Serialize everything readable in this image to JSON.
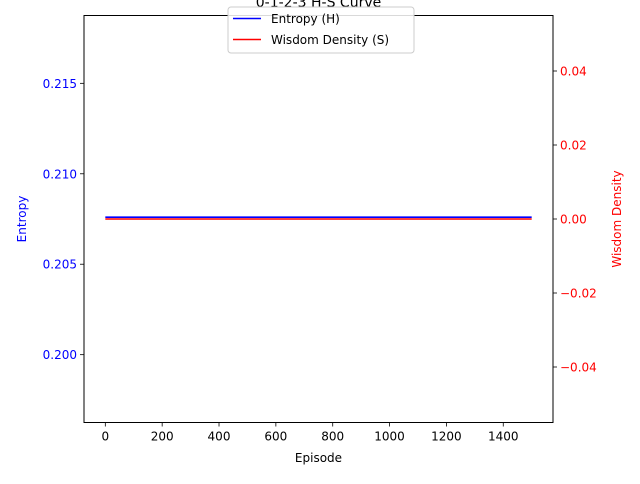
{
  "chart_data": {
    "type": "line",
    "title": "0-1-2-3 H-S Curve",
    "xlabel": "Episode",
    "ylabel_left": "Entropy",
    "ylabel_right": "Wisdom Density",
    "xlim": [
      -75,
      1575
    ],
    "x_ticks": [
      0,
      200,
      400,
      600,
      800,
      1000,
      1200,
      1400
    ],
    "x_tick_labels": [
      "0",
      "200",
      "400",
      "600",
      "800",
      "1000",
      "1200",
      "1400"
    ],
    "ylim_left": [
      0.19625,
      0.21875
    ],
    "y_ticks_left": [
      0.2,
      0.205,
      0.21,
      0.215
    ],
    "y_tick_labels_left": [
      "0.200",
      "0.205",
      "0.210",
      "0.215"
    ],
    "ylim_right": [
      -0.055,
      0.055
    ],
    "y_ticks_right": [
      -0.04,
      -0.02,
      0.0,
      0.02,
      0.04
    ],
    "y_tick_labels_right": [
      "−0.04",
      "−0.02",
      "0.00",
      "0.02",
      "0.04"
    ],
    "grid": false,
    "legend_placement": "top-center",
    "series": [
      {
        "name": "Entropy (H)",
        "axis": "left",
        "color": "#0000ff",
        "x": [
          0,
          1500
        ],
        "values": [
          0.2076,
          0.2076
        ]
      },
      {
        "name": "Wisdom Density (S)",
        "axis": "right",
        "color": "#ff0000",
        "x": [
          0,
          1500
        ],
        "values": [
          0.0,
          0.0
        ]
      }
    ],
    "left_axis_color": "#0000ff",
    "right_axis_color": "#ff0000"
  }
}
